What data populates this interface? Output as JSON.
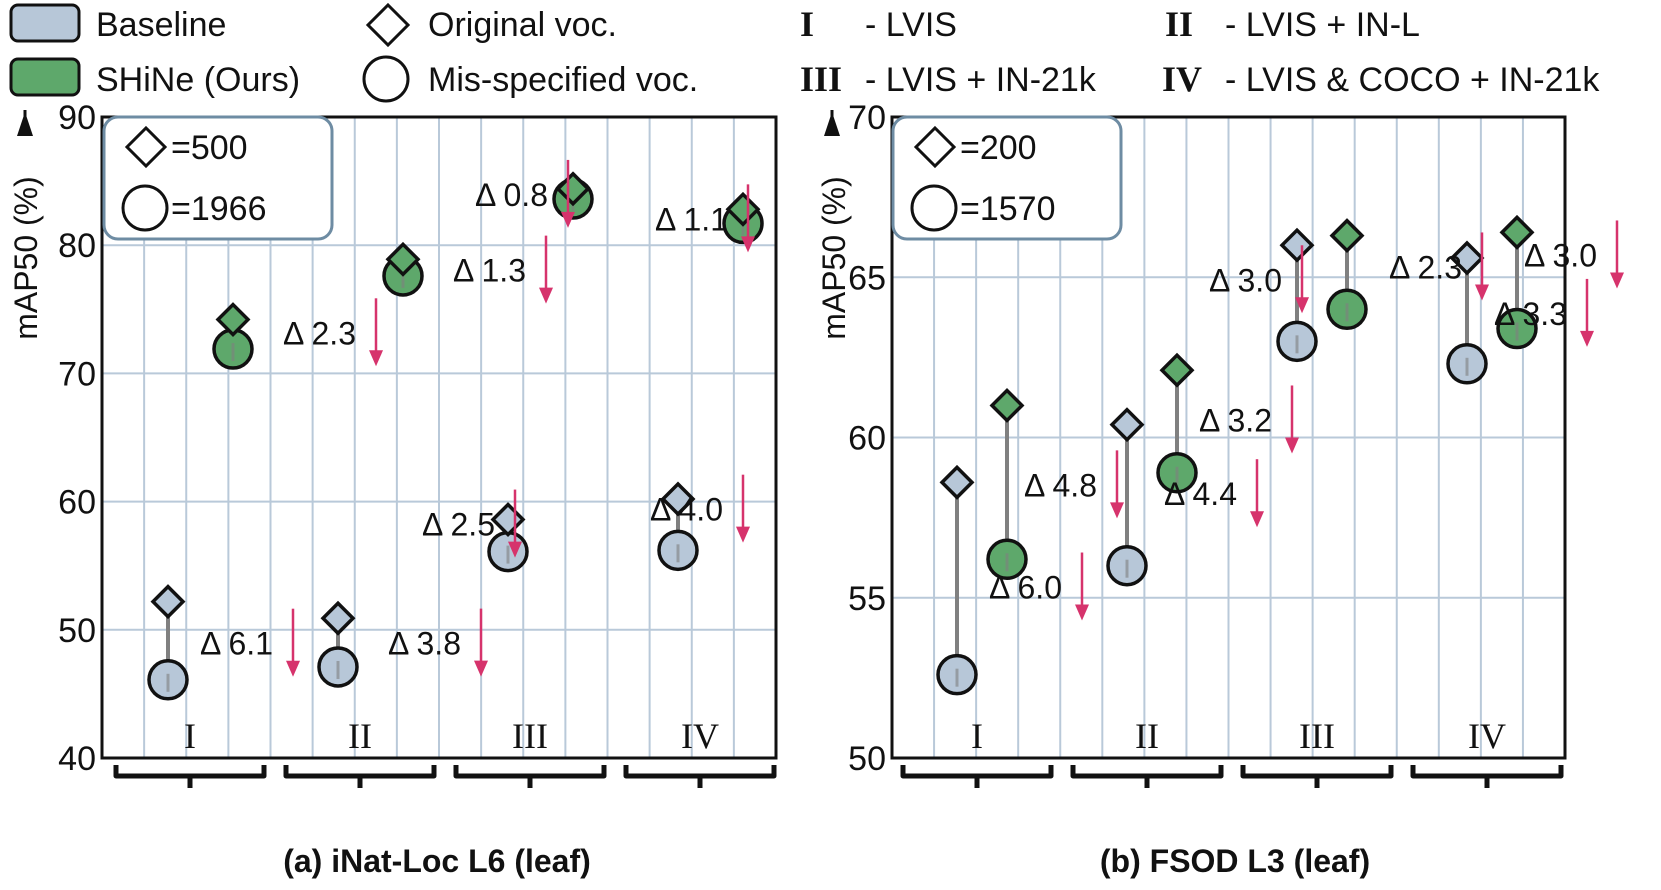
{
  "legend": {
    "baseline": "Baseline",
    "shine": "SHiNe (Ours)",
    "original": "Original voc.",
    "misspecified": "Mis-specified voc.",
    "groups": [
      {
        "numeral": "I",
        "desc": "- LVIS"
      },
      {
        "numeral": "II",
        "desc": "- LVIS + IN-L"
      },
      {
        "numeral": "III",
        "desc": "- LVIS + IN-21k"
      },
      {
        "numeral": "IV",
        "desc": "- LVIS & COCO + IN-21k"
      }
    ]
  },
  "colors": {
    "baseline": "#b7c7d8",
    "shine": "#5ea86b",
    "grid": "#b9c9d9",
    "arrow": "#d6336c",
    "stem": "#808080"
  },
  "chart_data": [
    {
      "type": "scatter",
      "panel_title": "(a) iNat-Loc L6 (leaf)",
      "ylabel": "mAP50 (%)",
      "ylim": [
        40,
        90
      ],
      "yticks": [
        "40",
        "50",
        "60",
        "70",
        "80",
        "90"
      ],
      "categories": [
        "I",
        "II",
        "III",
        "IV"
      ],
      "inset": {
        "diamond": "=500",
        "circle": "=1966"
      },
      "series": [
        {
          "name": "Baseline",
          "original": [
            52.2,
            50.9,
            58.6,
            60.2
          ],
          "misspecified": [
            46.1,
            47.1,
            56.1,
            56.2
          ],
          "delta_labels": [
            "Δ 6.1",
            "Δ 3.8",
            "Δ 2.5",
            "Δ 4.0"
          ]
        },
        {
          "name": "SHiNe (Ours)",
          "original": [
            74.2,
            78.9,
            84.4,
            82.8
          ],
          "misspecified": [
            71.9,
            77.6,
            83.6,
            81.7
          ],
          "delta_labels": [
            "Δ 2.3",
            "Δ 1.3",
            "Δ 0.8",
            "Δ 1.1"
          ]
        }
      ]
    },
    {
      "type": "scatter",
      "panel_title": "(b) FSOD L3 (leaf)",
      "ylabel": "mAP50 (%)",
      "ylim": [
        50,
        70
      ],
      "yticks": [
        "50",
        "55",
        "60",
        "65",
        "70"
      ],
      "categories": [
        "I",
        "II",
        "III",
        "IV"
      ],
      "inset": {
        "diamond": "=200",
        "circle": "=1570"
      },
      "series": [
        {
          "name": "Baseline",
          "original": [
            58.6,
            60.4,
            66.0,
            65.6
          ],
          "misspecified": [
            52.6,
            56.0,
            63.0,
            62.3
          ],
          "delta_labels": [
            "Δ 6.0",
            "Δ 4.4",
            "Δ 3.0",
            "Δ 3.3"
          ]
        },
        {
          "name": "SHiNe (Ours)",
          "original": [
            61.0,
            62.1,
            66.3,
            66.4
          ],
          "misspecified": [
            56.2,
            58.9,
            64.0,
            63.4
          ],
          "delta_labels": [
            "Δ 4.8",
            "Δ 3.2",
            "Δ 2.3",
            "Δ 3.0"
          ]
        }
      ]
    }
  ]
}
